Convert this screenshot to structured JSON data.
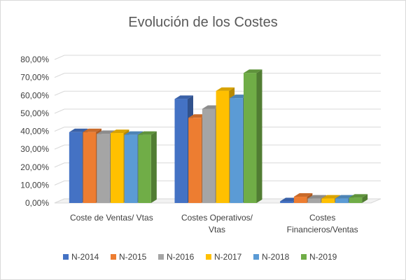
{
  "chart_data": {
    "type": "bar",
    "title": "Evolución de los Costes",
    "xlabel": "",
    "ylabel": "",
    "categories": [
      [
        "Coste de Ventas/ Vtas"
      ],
      [
        "Costes Operativos/",
        "Vtas"
      ],
      [
        "Costes",
        "Financieros/Ventas"
      ]
    ],
    "series": [
      {
        "name": "N-2014",
        "color": "#4472C4",
        "values": [
          39.5,
          58.0,
          1.0
        ]
      },
      {
        "name": "N-2015",
        "color": "#ED7D31",
        "values": [
          39.5,
          47.5,
          3.5
        ]
      },
      {
        "name": "N-2016",
        "color": "#A5A5A5",
        "values": [
          38.5,
          52.5,
          2.5
        ]
      },
      {
        "name": "N-2017",
        "color": "#FFC000",
        "values": [
          39.0,
          62.5,
          2.5
        ]
      },
      {
        "name": "N-2018",
        "color": "#5B9BD5",
        "values": [
          38.0,
          58.5,
          2.5
        ]
      },
      {
        "name": "N-2019",
        "color": "#70AD47",
        "values": [
          38.0,
          72.5,
          3.0
        ]
      }
    ],
    "ylim": [
      0,
      80
    ],
    "yticks": [
      "0,00%",
      "10,00%",
      "20,00%",
      "30,00%",
      "40,00%",
      "50,00%",
      "60,00%",
      "70,00%",
      "80,00%"
    ],
    "grid": true,
    "legend": "bottom",
    "style": "3d-clustered-column"
  }
}
